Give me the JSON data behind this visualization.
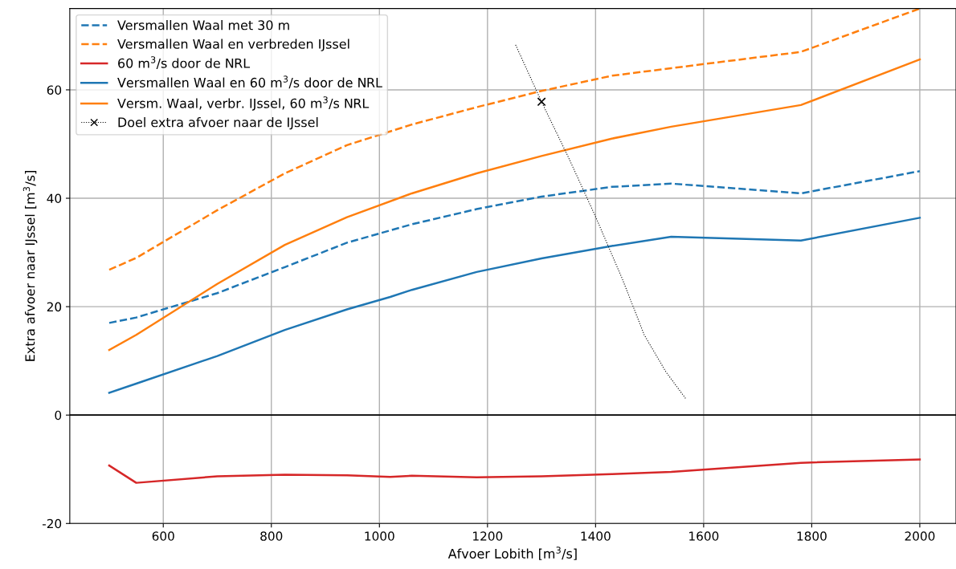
{
  "chart_data": {
    "type": "line",
    "xlabel": "Afvoer Lobith [m$^{3}$/s]",
    "ylabel": "Extra afvoer naar IJssel [m$^{3}$/s]",
    "xlim": [
      427,
      2067
    ],
    "ylim": [
      -20,
      75
    ],
    "xticks": [
      600,
      800,
      1000,
      1200,
      1400,
      1600,
      1800,
      2000
    ],
    "yticks": [
      -20,
      0,
      20,
      40,
      60
    ],
    "grid": true,
    "legend": "top left",
    "ref_lines": [
      {
        "axis": "y",
        "value": 0,
        "color": "#000000",
        "line_style": "solid"
      }
    ],
    "series": [
      {
        "name": "Versmallen Waal met 30 m",
        "color": "#1f77b4",
        "line_style": "dashed",
        "x": [
          500,
          550,
          700,
          825,
          940,
          1060,
          1180,
          1300,
          1430,
          1540,
          1780,
          2000
        ],
        "values": [
          17.0,
          18.0,
          22.5,
          27.3,
          31.8,
          35.2,
          38.0,
          40.3,
          42.1,
          42.7,
          40.9,
          45.0
        ]
      },
      {
        "name": "Versmallen Waal en verbreden IJssel",
        "color": "#ff7f0e",
        "line_style": "dashed",
        "x": [
          500,
          550,
          700,
          825,
          940,
          1060,
          1180,
          1300,
          1430,
          1540,
          1780,
          2000
        ],
        "values": [
          26.8,
          29.0,
          37.8,
          44.6,
          49.8,
          53.6,
          56.8,
          59.8,
          62.6,
          64.0,
          67.0,
          75.0
        ]
      },
      {
        "name": "60 m$^{3}$/s door de NRL",
        "color": "#d62728",
        "line_style": "solid",
        "x": [
          500,
          550,
          700,
          825,
          940,
          1020,
          1060,
          1180,
          1300,
          1430,
          1540,
          1780,
          2000
        ],
        "values": [
          -9.3,
          -12.5,
          -11.3,
          -11.0,
          -11.1,
          -11.4,
          -11.2,
          -11.5,
          -11.3,
          -10.9,
          -10.5,
          -8.8,
          -8.2
        ]
      },
      {
        "name": "Versmallen Waal en 60 m$^{3}$/s door de NRL",
        "color": "#1f77b4",
        "line_style": "solid",
        "x": [
          500,
          550,
          700,
          825,
          940,
          1020,
          1060,
          1180,
          1300,
          1430,
          1540,
          1780,
          2000
        ],
        "values": [
          4.1,
          5.8,
          10.9,
          15.7,
          19.5,
          21.8,
          23.1,
          26.4,
          28.9,
          31.2,
          32.9,
          32.2,
          36.4
        ]
      },
      {
        "name": "Versm. Waal, verbr. IJssel, 60 m$^{3}$/s NRL",
        "color": "#ff7f0e",
        "line_style": "solid",
        "x": [
          500,
          550,
          700,
          825,
          940,
          1060,
          1180,
          1300,
          1430,
          1540,
          1780,
          2000
        ],
        "values": [
          12.0,
          14.8,
          24.2,
          31.4,
          36.5,
          40.9,
          44.6,
          47.8,
          51.0,
          53.2,
          57.2,
          65.6
        ]
      },
      {
        "name": "Doel extra afvoer naar de IJssel",
        "type": "scatter",
        "marker": "cross",
        "color": "#000000",
        "line_style": "dotted",
        "x": [
          1300
        ],
        "values": [
          57.8
        ]
      },
      {
        "color": "#000000",
        "line_style": "dotted",
        "x": [
          1252,
          1300,
          1350,
          1400,
          1450,
          1490,
          1530,
          1567
        ],
        "values": [
          68.3,
          57.8,
          47.5,
          36.6,
          25.0,
          14.8,
          8.0,
          3.0
        ]
      }
    ]
  }
}
